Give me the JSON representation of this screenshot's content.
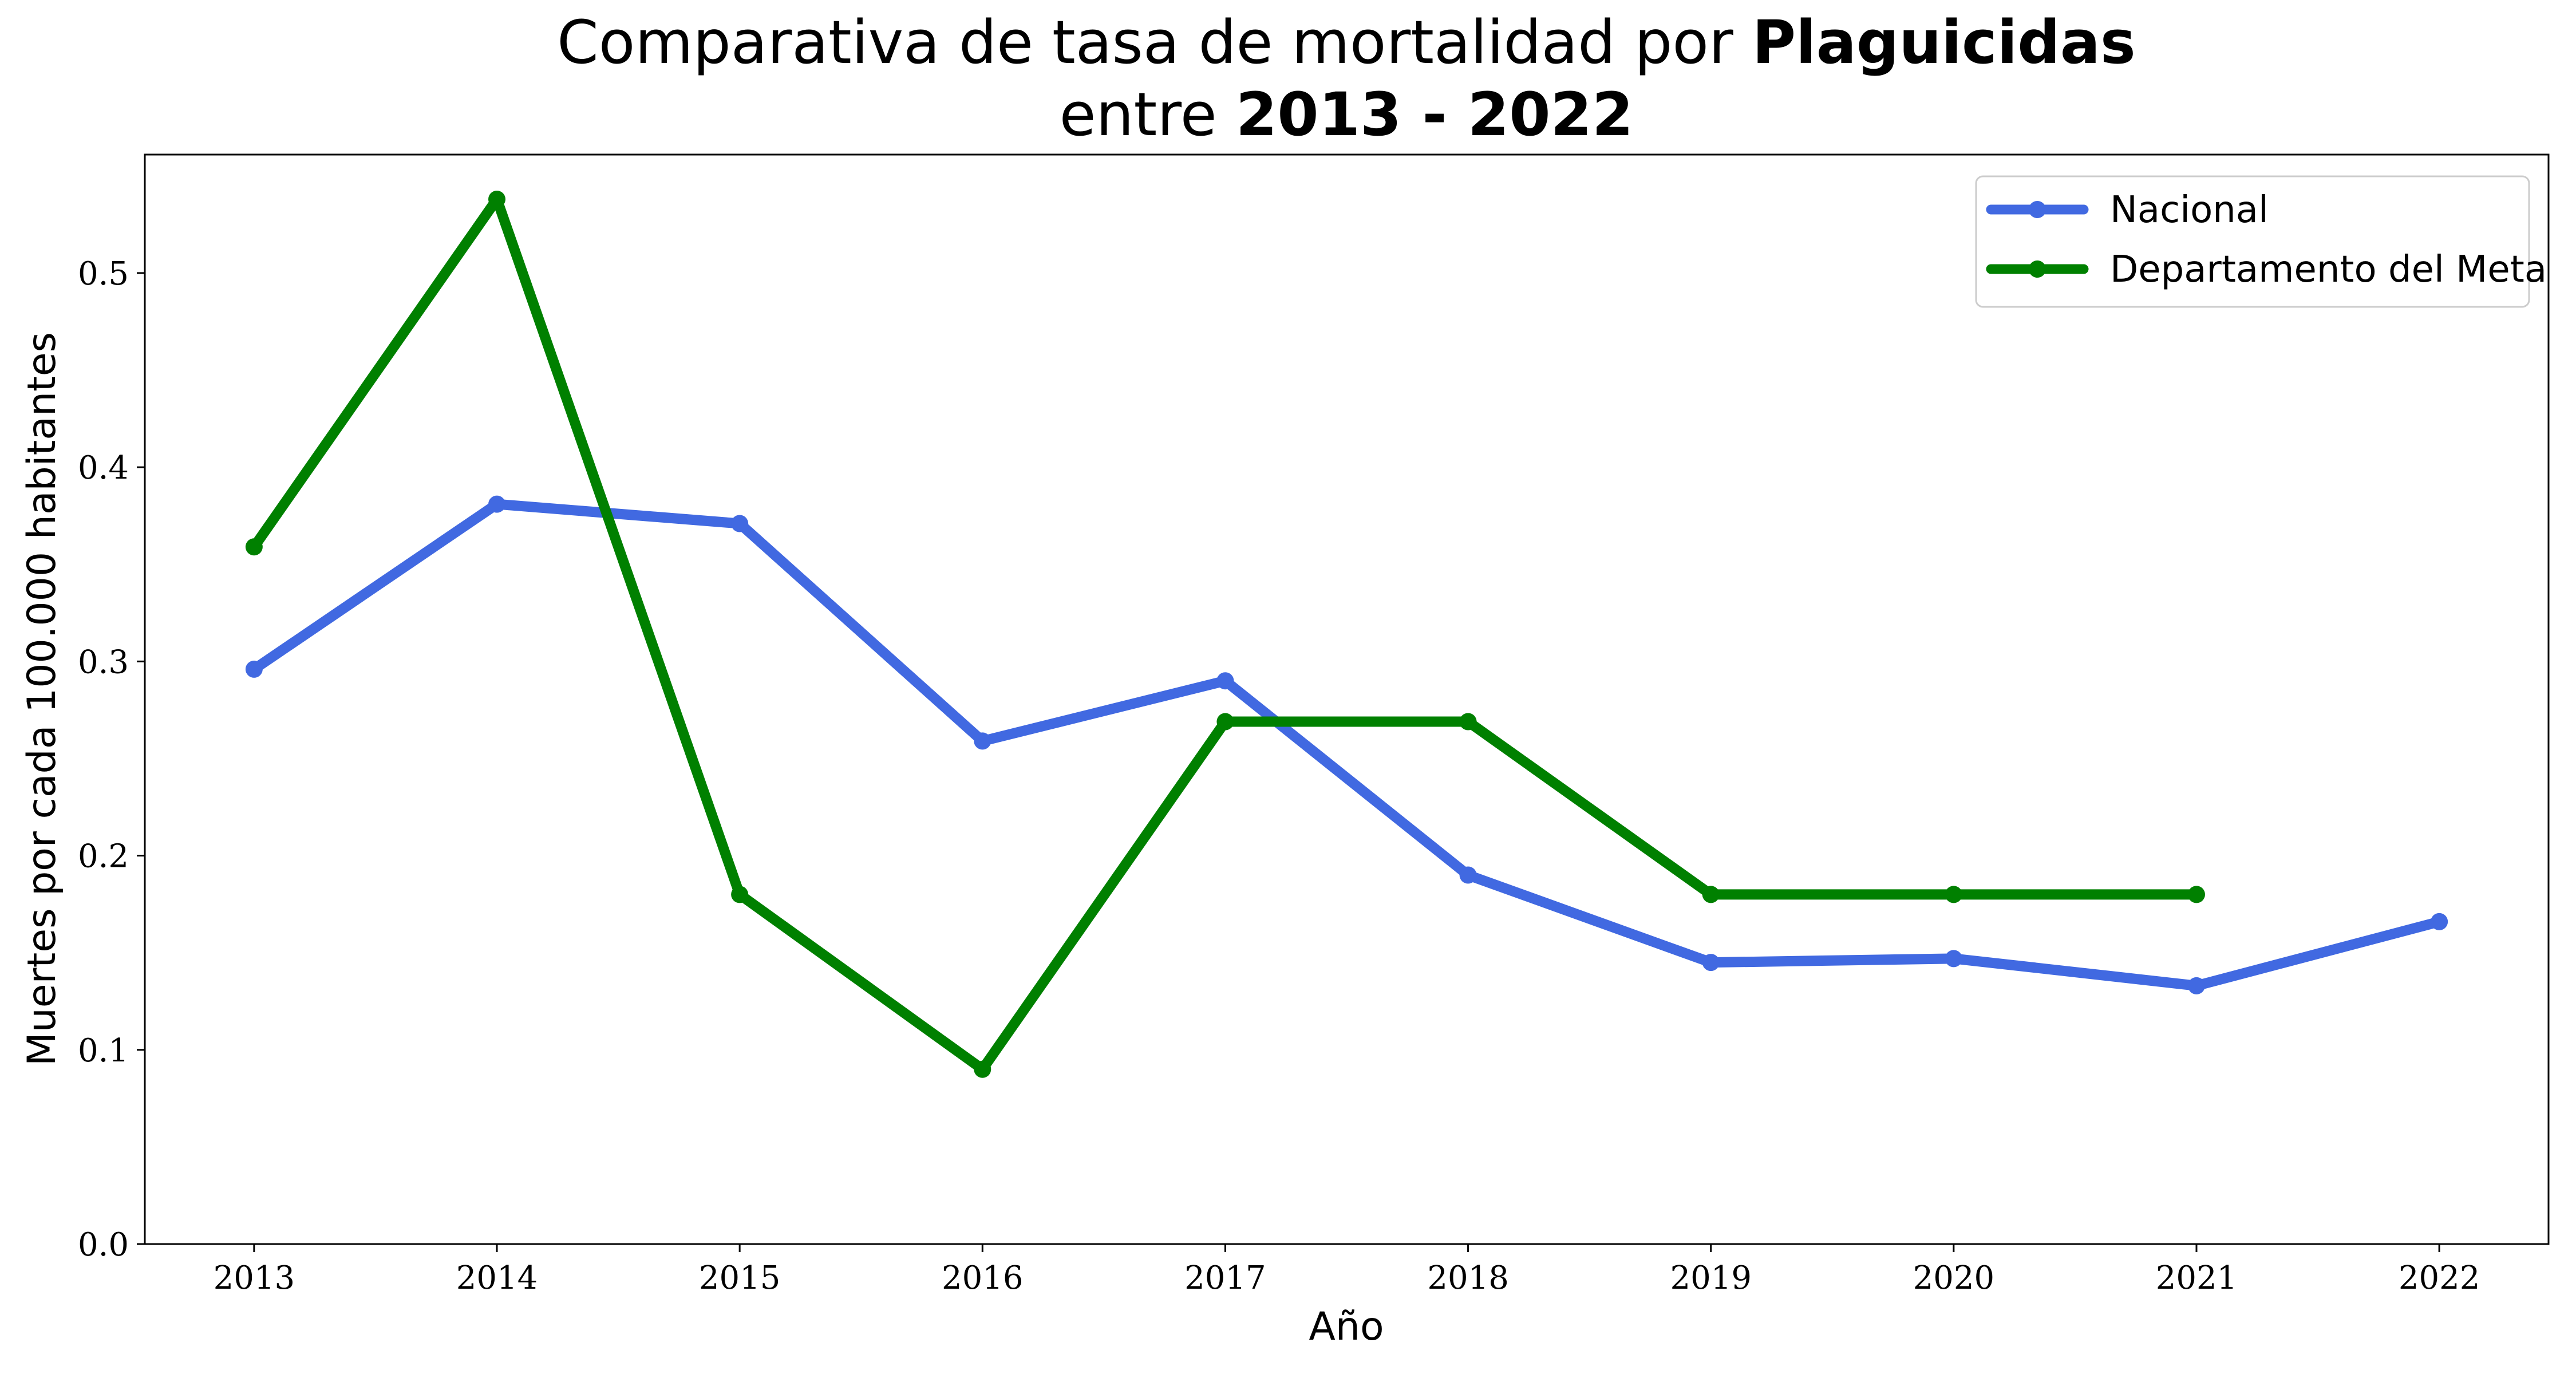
{
  "chart_data": {
    "type": "line",
    "title_line1_prefix": "Comparativa de tasa de mortalidad por ",
    "title_line1_bold": "Plaguicidas",
    "title_line2_prefix": "entre ",
    "title_line2_bold": "2013 - 2022",
    "xlabel": "Año",
    "ylabel": "Muertes por cada 100.000 habitantes",
    "x": [
      2013,
      2014,
      2015,
      2016,
      2017,
      2018,
      2019,
      2020,
      2021,
      2022
    ],
    "x_tick_labels": [
      "2013",
      "2014",
      "2015",
      "2016",
      "2017",
      "2018",
      "2019",
      "2020",
      "2021",
      "2022"
    ],
    "y_tick_values": [
      0.0,
      0.1,
      0.2,
      0.3,
      0.4,
      0.5
    ],
    "y_tick_labels": [
      "0.0",
      "0.1",
      "0.2",
      "0.3",
      "0.4",
      "0.5"
    ],
    "ylim": [
      0.0,
      0.561
    ],
    "xlim": [
      2012.55,
      2022.45
    ],
    "grid": false,
    "legend_position": "top-right",
    "series": [
      {
        "name": "Nacional",
        "color": "#4169e1",
        "x": [
          2013,
          2014,
          2015,
          2016,
          2017,
          2018,
          2019,
          2020,
          2021,
          2022
        ],
        "values": [
          0.296,
          0.381,
          0.371,
          0.259,
          0.29,
          0.19,
          0.145,
          0.147,
          0.133,
          0.166
        ]
      },
      {
        "name": "Departamento del Meta",
        "color": "#008000",
        "x": [
          2013,
          2014,
          2015,
          2016,
          2017,
          2018,
          2019,
          2020,
          2021
        ],
        "values": [
          0.359,
          0.538,
          0.18,
          0.09,
          0.269,
          0.269,
          0.18,
          0.18,
          0.18
        ]
      }
    ]
  }
}
